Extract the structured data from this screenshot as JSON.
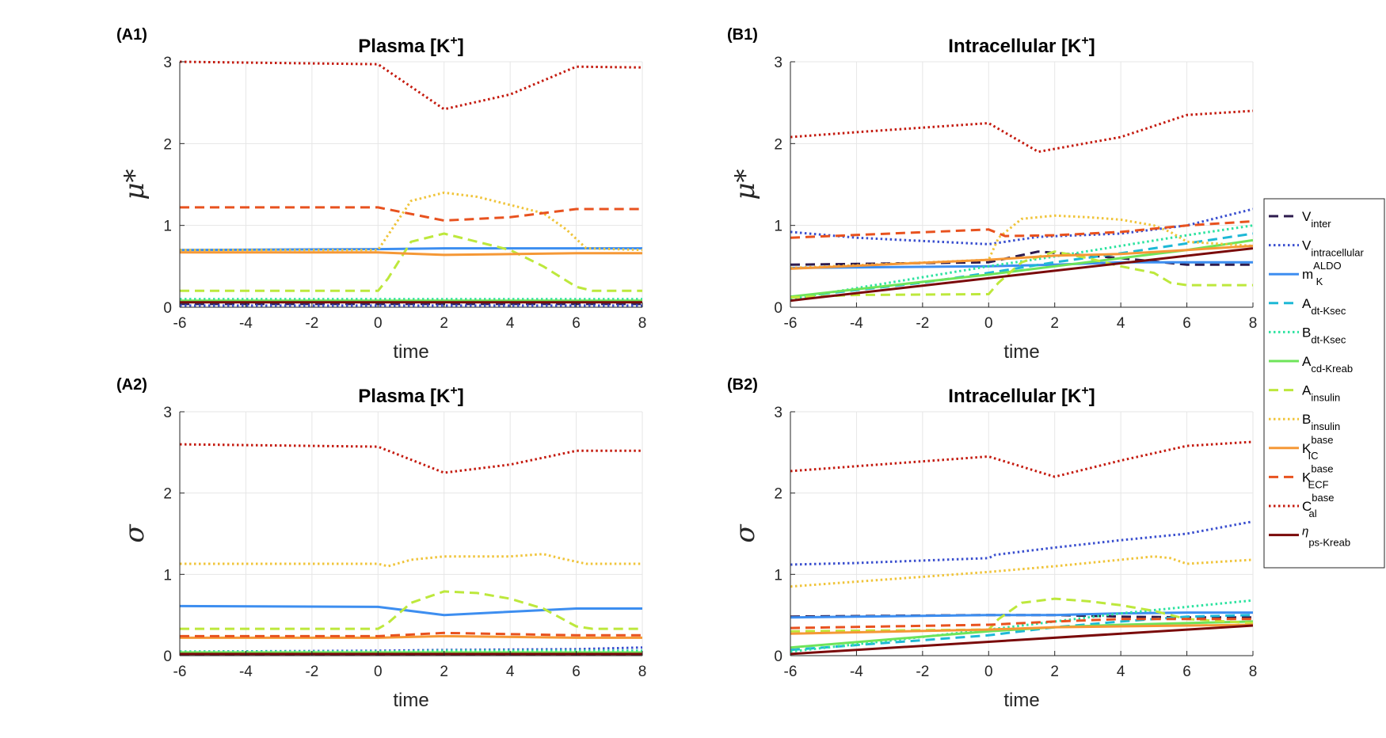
{
  "legend": [
    {
      "id": "V_inter",
      "base": "V",
      "sub": "inter",
      "sup": "",
      "greek": false,
      "color": "#2d1b4e",
      "dash": "dashed",
      "width": 3
    },
    {
      "id": "V_intracellular",
      "base": "V",
      "sub": "intracellular",
      "sup": "",
      "greek": false,
      "color": "#3a4fcf",
      "dash": "dotted",
      "width": 3
    },
    {
      "id": "m_K_ALDO",
      "base": "m",
      "sub": "K",
      "sup": "ALDO",
      "greek": false,
      "color": "#3d8ef0",
      "dash": "solid",
      "width": 3
    },
    {
      "id": "A_dt_Ksec",
      "base": "A",
      "sub": "dt-Ksec",
      "sup": "",
      "greek": false,
      "color": "#1eb8d6",
      "dash": "dashed",
      "width": 3
    },
    {
      "id": "B_dt_Ksec",
      "base": "B",
      "sub": "dt-Ksec",
      "sup": "",
      "greek": false,
      "color": "#2de3a0",
      "dash": "dotted",
      "width": 3
    },
    {
      "id": "A_cd_Kreab",
      "base": "A",
      "sub": "cd-Kreab",
      "sup": "",
      "greek": false,
      "color": "#6ee45a",
      "dash": "solid",
      "width": 3
    },
    {
      "id": "A_insulin",
      "base": "A",
      "sub": "insulin",
      "sup": "",
      "greek": false,
      "color": "#bde83c",
      "dash": "dashed",
      "width": 3
    },
    {
      "id": "B_insulin",
      "base": "B",
      "sub": "insulin",
      "sup": "",
      "greek": false,
      "color": "#f0c43a",
      "dash": "dotted",
      "width": 3
    },
    {
      "id": "K_IC_base",
      "base": "K",
      "sub": "IC",
      "sup": "base",
      "greek": false,
      "color": "#f59836",
      "dash": "solid",
      "width": 3
    },
    {
      "id": "K_ECF_base",
      "base": "K",
      "sub": "ECF",
      "sup": "base",
      "greek": false,
      "color": "#e8521f",
      "dash": "dashed",
      "width": 3
    },
    {
      "id": "C_al_base",
      "base": "C",
      "sub": "al",
      "sup": "base",
      "greek": false,
      "color": "#c41a0e",
      "dash": "dotted",
      "width": 3
    },
    {
      "id": "eta_ps_Kreab",
      "base": "η",
      "sub": "ps-Kreab",
      "sup": "",
      "greek": true,
      "color": "#7a0a0a",
      "dash": "solid",
      "width": 3
    }
  ],
  "chart_data": [
    {
      "panel": "(A1)",
      "type": "line",
      "title_prefix": "Plasma [K",
      "title_sup": "+",
      "title_suffix": "]",
      "xlabel": "time",
      "ylabel": "μ*",
      "xlim": [
        -6,
        8
      ],
      "ylim": [
        0,
        3
      ],
      "xticks": [
        -6,
        -4,
        -2,
        0,
        2,
        4,
        6,
        8
      ],
      "yticks": [
        0,
        1,
        2,
        3
      ],
      "grid": true,
      "series": [
        {
          "name": "V_inter",
          "x": [
            -6,
            0,
            2,
            6,
            8
          ],
          "y": [
            0.04,
            0.04,
            0.04,
            0.04,
            0.04
          ]
        },
        {
          "name": "V_intracellular",
          "x": [
            -6,
            0,
            2,
            6,
            8
          ],
          "y": [
            0.02,
            0.02,
            0.02,
            0.02,
            0.02
          ]
        },
        {
          "name": "m_K_ALDO",
          "x": [
            -6,
            0,
            2,
            6,
            8
          ],
          "y": [
            0.7,
            0.71,
            0.72,
            0.72,
            0.72
          ]
        },
        {
          "name": "A_dt_Ksec",
          "x": [
            -6,
            0,
            2,
            6,
            8
          ],
          "y": [
            0.06,
            0.06,
            0.06,
            0.06,
            0.06
          ]
        },
        {
          "name": "B_dt_Ksec",
          "x": [
            -6,
            0,
            2,
            6,
            8
          ],
          "y": [
            0.1,
            0.1,
            0.1,
            0.1,
            0.1
          ]
        },
        {
          "name": "A_cd_Kreab",
          "x": [
            -6,
            0,
            2,
            6,
            8
          ],
          "y": [
            0.08,
            0.08,
            0.08,
            0.08,
            0.08
          ]
        },
        {
          "name": "A_insulin",
          "x": [
            -6,
            0,
            0.3,
            1,
            2,
            3,
            4,
            5,
            6,
            6.5,
            8
          ],
          "y": [
            0.2,
            0.2,
            0.35,
            0.8,
            0.9,
            0.8,
            0.7,
            0.5,
            0.25,
            0.2,
            0.2
          ]
        },
        {
          "name": "B_insulin",
          "x": [
            -6,
            0,
            0.5,
            1,
            2,
            3,
            4,
            5,
            5.7,
            6.3,
            8
          ],
          "y": [
            0.7,
            0.7,
            1.0,
            1.3,
            1.4,
            1.35,
            1.25,
            1.15,
            0.95,
            0.72,
            0.7
          ]
        },
        {
          "name": "K_IC_base",
          "x": [
            -6,
            0,
            2,
            6,
            8
          ],
          "y": [
            0.67,
            0.67,
            0.64,
            0.66,
            0.66
          ]
        },
        {
          "name": "K_ECF_base",
          "x": [
            -6,
            0,
            2,
            4,
            6,
            8
          ],
          "y": [
            1.22,
            1.22,
            1.06,
            1.1,
            1.2,
            1.2
          ]
        },
        {
          "name": "C_al_base",
          "x": [
            -6,
            0,
            2,
            4,
            6,
            8
          ],
          "y": [
            3.0,
            2.97,
            2.42,
            2.6,
            2.94,
            2.93
          ]
        },
        {
          "name": "eta_ps_Kreab",
          "x": [
            -6,
            0,
            2,
            6,
            8
          ],
          "y": [
            0.06,
            0.06,
            0.06,
            0.06,
            0.06
          ]
        }
      ]
    },
    {
      "panel": "(B1)",
      "type": "line",
      "title_prefix": "Intracellular [K",
      "title_sup": "+",
      "title_suffix": "]",
      "xlabel": "time",
      "ylabel": "μ*",
      "xlim": [
        -6,
        8
      ],
      "ylim": [
        0,
        3
      ],
      "xticks": [
        -6,
        -4,
        -2,
        0,
        2,
        4,
        6,
        8
      ],
      "yticks": [
        0,
        1,
        2,
        3
      ],
      "grid": true,
      "series": [
        {
          "name": "V_inter",
          "x": [
            -6,
            0,
            1.5,
            4,
            6,
            8
          ],
          "y": [
            0.52,
            0.55,
            0.68,
            0.6,
            0.52,
            0.52
          ]
        },
        {
          "name": "V_intracellular",
          "x": [
            -6,
            -4,
            0,
            1.5,
            4,
            6,
            8
          ],
          "y": [
            0.92,
            0.85,
            0.77,
            0.86,
            0.9,
            1.0,
            1.2
          ]
        },
        {
          "name": "m_K_ALDO",
          "x": [
            -6,
            0,
            2,
            4,
            8
          ],
          "y": [
            0.48,
            0.5,
            0.52,
            0.55,
            0.55
          ]
        },
        {
          "name": "A_dt_Ksec",
          "x": [
            -6,
            -2,
            0,
            2,
            4,
            6,
            8
          ],
          "y": [
            0.12,
            0.3,
            0.42,
            0.55,
            0.66,
            0.78,
            0.9
          ]
        },
        {
          "name": "B_dt_Ksec",
          "x": [
            -6,
            0,
            2,
            4,
            6,
            8
          ],
          "y": [
            0.1,
            0.5,
            0.62,
            0.75,
            0.88,
            1.0
          ]
        },
        {
          "name": "A_cd_Kreab",
          "x": [
            -6,
            0,
            2,
            4,
            6,
            8
          ],
          "y": [
            0.13,
            0.4,
            0.5,
            0.6,
            0.7,
            0.82
          ]
        },
        {
          "name": "A_insulin",
          "x": [
            -6,
            -4,
            0,
            0.3,
            1,
            2,
            3,
            4,
            5,
            5.5,
            6,
            8
          ],
          "y": [
            0.12,
            0.15,
            0.16,
            0.3,
            0.55,
            0.68,
            0.6,
            0.5,
            0.42,
            0.3,
            0.27,
            0.27
          ]
        },
        {
          "name": "B_insulin",
          "x": [
            -6,
            0,
            0.3,
            1,
            2,
            3,
            4,
            5,
            5.5,
            6,
            8
          ],
          "y": [
            0.48,
            0.58,
            0.85,
            1.08,
            1.12,
            1.1,
            1.07,
            1.0,
            0.92,
            0.8,
            0.75
          ]
        },
        {
          "name": "K_IC_base",
          "x": [
            -6,
            0,
            2,
            4,
            6,
            8
          ],
          "y": [
            0.47,
            0.58,
            0.63,
            0.65,
            0.7,
            0.75
          ]
        },
        {
          "name": "K_ECF_base",
          "x": [
            -6,
            0,
            0.5,
            2,
            4,
            6,
            8
          ],
          "y": [
            0.85,
            0.95,
            0.87,
            0.88,
            0.92,
            1.0,
            1.05
          ]
        },
        {
          "name": "C_al_base",
          "x": [
            -6,
            -4,
            0,
            1.5,
            4,
            6,
            8
          ],
          "y": [
            2.08,
            2.14,
            2.25,
            1.9,
            2.08,
            2.35,
            2.4
          ]
        },
        {
          "name": "eta_ps_Kreab",
          "x": [
            -6,
            8
          ],
          "y": [
            0.08,
            0.72
          ]
        }
      ]
    },
    {
      "panel": "(A2)",
      "type": "line",
      "title_prefix": "Plasma [K",
      "title_sup": "+",
      "title_suffix": "]",
      "xlabel": "time",
      "ylabel": "σ",
      "xlim": [
        -6,
        8
      ],
      "ylim": [
        0,
        3
      ],
      "xticks": [
        -6,
        -4,
        -2,
        0,
        2,
        4,
        6,
        8
      ],
      "yticks": [
        0,
        1,
        2,
        3
      ],
      "grid": true,
      "series": [
        {
          "name": "V_inter",
          "x": [
            -6,
            0,
            2,
            6,
            8
          ],
          "y": [
            0.02,
            0.02,
            0.02,
            0.02,
            0.02
          ]
        },
        {
          "name": "V_intracellular",
          "x": [
            -6,
            0,
            2,
            6,
            8
          ],
          "y": [
            0.05,
            0.06,
            0.07,
            0.08,
            0.1
          ]
        },
        {
          "name": "m_K_ALDO",
          "x": [
            -6,
            0,
            2,
            6,
            8
          ],
          "y": [
            0.61,
            0.6,
            0.5,
            0.58,
            0.58
          ]
        },
        {
          "name": "A_dt_Ksec",
          "x": [
            -6,
            0,
            2,
            6,
            8
          ],
          "y": [
            0.03,
            0.03,
            0.03,
            0.03,
            0.03
          ]
        },
        {
          "name": "B_dt_Ksec",
          "x": [
            -6,
            0,
            2,
            6,
            8
          ],
          "y": [
            0.05,
            0.05,
            0.06,
            0.06,
            0.06
          ]
        },
        {
          "name": "A_cd_Kreab",
          "x": [
            -6,
            0,
            2,
            6,
            8
          ],
          "y": [
            0.04,
            0.04,
            0.04,
            0.04,
            0.04
          ]
        },
        {
          "name": "A_insulin",
          "x": [
            -6,
            0,
            0.3,
            1,
            2,
            3,
            4,
            5,
            6,
            6.5,
            8
          ],
          "y": [
            0.33,
            0.33,
            0.4,
            0.65,
            0.79,
            0.77,
            0.7,
            0.58,
            0.36,
            0.33,
            0.33
          ]
        },
        {
          "name": "B_insulin",
          "x": [
            -6,
            0,
            0.3,
            1,
            2,
            3,
            4,
            5,
            5.5,
            6.3,
            8
          ],
          "y": [
            1.13,
            1.13,
            1.1,
            1.18,
            1.22,
            1.22,
            1.22,
            1.25,
            1.2,
            1.13,
            1.13
          ]
        },
        {
          "name": "K_IC_base",
          "x": [
            -6,
            0,
            2,
            6,
            8
          ],
          "y": [
            0.22,
            0.22,
            0.24,
            0.22,
            0.22
          ]
        },
        {
          "name": "K_ECF_base",
          "x": [
            -6,
            0,
            2,
            6,
            8
          ],
          "y": [
            0.24,
            0.24,
            0.28,
            0.25,
            0.25
          ]
        },
        {
          "name": "C_al_base",
          "x": [
            -6,
            0,
            2,
            4,
            6,
            8
          ],
          "y": [
            2.6,
            2.57,
            2.25,
            2.35,
            2.52,
            2.52
          ]
        },
        {
          "name": "eta_ps_Kreab",
          "x": [
            -6,
            0,
            2,
            6,
            8
          ],
          "y": [
            0.02,
            0.02,
            0.02,
            0.02,
            0.02
          ]
        }
      ]
    },
    {
      "panel": "(B2)",
      "type": "line",
      "title_prefix": "Intracellular [K",
      "title_sup": "+",
      "title_suffix": "]",
      "xlabel": "time",
      "ylabel": "σ",
      "xlim": [
        -6,
        8
      ],
      "ylim": [
        0,
        3
      ],
      "xticks": [
        -6,
        -4,
        -2,
        0,
        2,
        4,
        6,
        8
      ],
      "yticks": [
        0,
        1,
        2,
        3
      ],
      "grid": true,
      "series": [
        {
          "name": "V_inter",
          "x": [
            -6,
            0,
            2,
            4,
            6,
            8
          ],
          "y": [
            0.48,
            0.5,
            0.5,
            0.48,
            0.47,
            0.47
          ]
        },
        {
          "name": "V_intracellular",
          "x": [
            -6,
            -4,
            0,
            0.2,
            2,
            4,
            6,
            8
          ],
          "y": [
            1.12,
            1.14,
            1.2,
            1.24,
            1.33,
            1.42,
            1.5,
            1.65
          ]
        },
        {
          "name": "m_K_ALDO",
          "x": [
            -6,
            0,
            2,
            4,
            6,
            8
          ],
          "y": [
            0.47,
            0.5,
            0.5,
            0.52,
            0.53,
            0.53
          ]
        },
        {
          "name": "A_dt_Ksec",
          "x": [
            -6,
            0,
            2,
            4,
            6,
            8
          ],
          "y": [
            0.07,
            0.25,
            0.35,
            0.42,
            0.48,
            0.5
          ]
        },
        {
          "name": "B_dt_Ksec",
          "x": [
            -6,
            0,
            2,
            4,
            6,
            8
          ],
          "y": [
            0.05,
            0.32,
            0.42,
            0.52,
            0.6,
            0.68
          ]
        },
        {
          "name": "A_cd_Kreab",
          "x": [
            -6,
            0,
            2,
            4,
            6,
            8
          ],
          "y": [
            0.1,
            0.3,
            0.35,
            0.38,
            0.4,
            0.42
          ]
        },
        {
          "name": "A_insulin",
          "x": [
            -6,
            0,
            0.3,
            1,
            2,
            3,
            4,
            5,
            6,
            8
          ],
          "y": [
            0.3,
            0.32,
            0.45,
            0.65,
            0.7,
            0.67,
            0.62,
            0.55,
            0.45,
            0.4
          ]
        },
        {
          "name": "B_insulin",
          "x": [
            -6,
            0,
            2,
            4,
            5,
            5.5,
            6,
            8
          ],
          "y": [
            0.85,
            1.03,
            1.1,
            1.18,
            1.22,
            1.2,
            1.13,
            1.18
          ]
        },
        {
          "name": "K_IC_base",
          "x": [
            -6,
            0,
            2,
            4,
            6,
            8
          ],
          "y": [
            0.27,
            0.32,
            0.35,
            0.36,
            0.37,
            0.38
          ]
        },
        {
          "name": "K_ECF_base",
          "x": [
            -6,
            0,
            2,
            4,
            6,
            8
          ],
          "y": [
            0.34,
            0.38,
            0.42,
            0.45,
            0.45,
            0.45
          ]
        },
        {
          "name": "C_al_base",
          "x": [
            -6,
            0,
            2,
            4,
            6,
            8
          ],
          "y": [
            2.27,
            2.45,
            2.2,
            2.4,
            2.58,
            2.63
          ]
        },
        {
          "name": "eta_ps_Kreab",
          "x": [
            -6,
            8
          ],
          "y": [
            0.02,
            0.37
          ]
        }
      ]
    }
  ]
}
